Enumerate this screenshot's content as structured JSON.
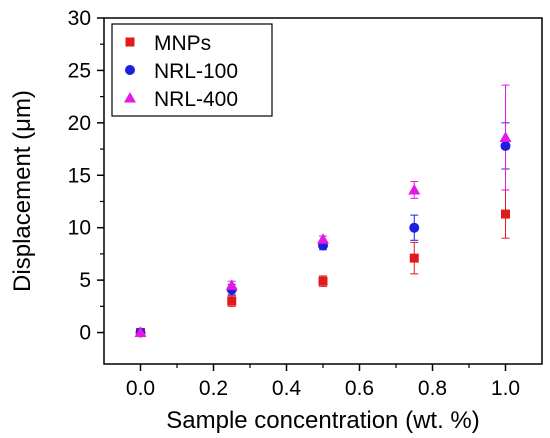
{
  "chart_data": {
    "type": "scatter",
    "title": "",
    "xlabel": "Sample concentration (wt. %)",
    "ylabel": "Displacement (μm)",
    "xlim": [
      -0.1,
      1.1
    ],
    "ylim": [
      -3,
      30
    ],
    "x_ticks": [
      "0.0",
      "0.2",
      "0.4",
      "0.6",
      "0.8",
      "1.0"
    ],
    "y_ticks": [
      "0",
      "5",
      "10",
      "15",
      "20",
      "25",
      "30"
    ],
    "grid": false,
    "legend_position": "top-left",
    "x": [
      0.0,
      0.25,
      0.5,
      0.75,
      1.0
    ],
    "series": [
      {
        "name": "MNPs",
        "marker": "square",
        "color": "#e31a1c",
        "values": [
          0.0,
          3.0,
          4.9,
          7.1,
          11.3
        ],
        "errors": [
          0.2,
          0.5,
          0.5,
          1.5,
          2.3
        ]
      },
      {
        "name": "NRL-100",
        "marker": "circle",
        "color": "#1f1fe0",
        "values": [
          0.0,
          4.1,
          8.3,
          10.0,
          17.8
        ],
        "errors": [
          0.2,
          0.5,
          0.4,
          1.2,
          2.2
        ]
      },
      {
        "name": "NRL-400",
        "marker": "triangle",
        "color": "#e31ae3",
        "values": [
          0.0,
          4.5,
          8.9,
          13.6,
          18.6
        ],
        "errors": [
          0.2,
          0.4,
          0.3,
          0.8,
          5.0
        ]
      }
    ]
  }
}
